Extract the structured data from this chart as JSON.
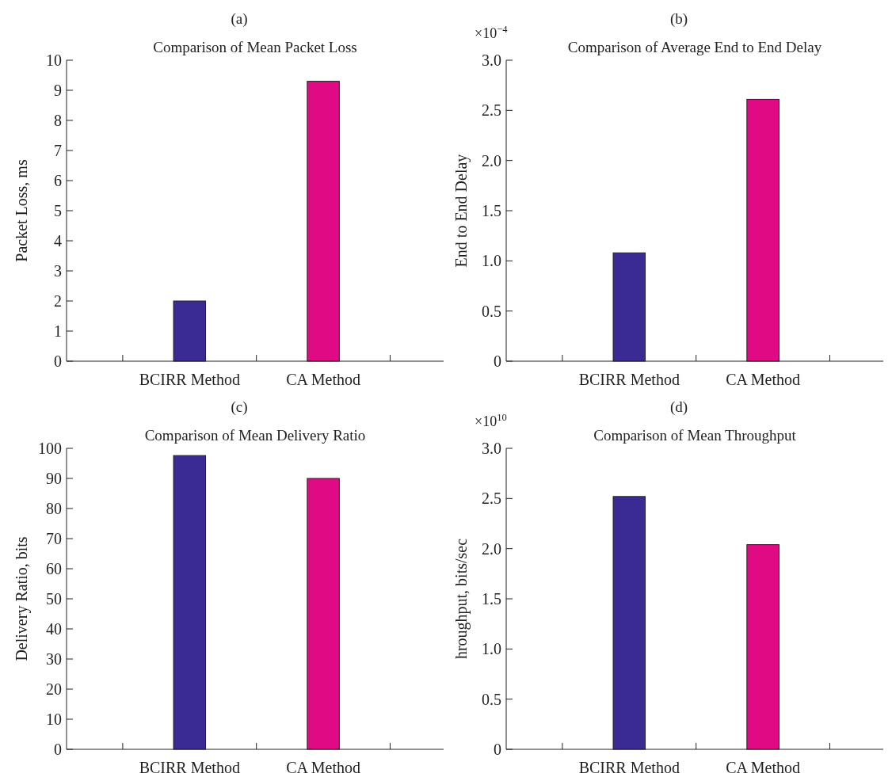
{
  "chart_data": [
    {
      "type": "bar",
      "title": "(a)",
      "subtitle": "Comparison of Mean Packet Loss",
      "ylabel": "Packet Loss, ms",
      "categories": [
        "BCIRR Method",
        "CA Method"
      ],
      "values": [
        2.0,
        9.3
      ],
      "colors": [
        "#3a2a93",
        "#e00a85"
      ],
      "ylim": [
        0,
        10
      ],
      "yticks": [
        0,
        1,
        2,
        3,
        4,
        5,
        6,
        7,
        8,
        9,
        10
      ]
    },
    {
      "type": "bar",
      "title": "(b)",
      "subtitle": "Comparison of Average End to End Delay",
      "ylabel": "End to End Delay",
      "annotations": [
        "×10$^{−4}$"
      ],
      "categories": [
        "BCIRR Method",
        "CA Method"
      ],
      "values": [
        1.08,
        2.61
      ],
      "colors": [
        "#3a2a93",
        "#e00a85"
      ],
      "ylim": [
        0,
        3
      ],
      "yticks": [
        0,
        {
          "value": 0.5,
          "label": "0.5"
        },
        {
          "value": 1,
          "label": "1.0"
        },
        {
          "value": 1.5,
          "label": "1.5"
        },
        {
          "value": 2,
          "label": "2.0"
        },
        {
          "value": 2.5,
          "label": "2.5"
        },
        {
          "value": 3,
          "label": "3.0"
        }
      ]
    },
    {
      "type": "bar",
      "title": "(c)",
      "subtitle": "Comparison of Mean Delivery Ratio",
      "ylabel": "Delivery Ratio, bits",
      "categories": [
        "BCIRR Method",
        "CA Method"
      ],
      "values": [
        97.6,
        90.0
      ],
      "colors": [
        "#3a2a93",
        "#e00a85"
      ],
      "ylim": [
        0,
        100
      ],
      "yticks": [
        0,
        10,
        20,
        30,
        40,
        50,
        60,
        70,
        80,
        90,
        100
      ]
    },
    {
      "type": "bar",
      "title": "(d)",
      "subtitle": "Comparison of Mean Throughput",
      "ylabel": "hroughput, bits/sec",
      "annotations": [
        "×10$^{10}$"
      ],
      "categories": [
        "BCIRR Method",
        "CA Method"
      ],
      "values": [
        2.52,
        2.04
      ],
      "colors": [
        "#3a2a93",
        "#e00a85"
      ],
      "ylim": [
        0,
        3
      ],
      "yticks": [
        0,
        {
          "value": 0.5,
          "label": "0.5"
        },
        {
          "value": 1,
          "label": "1.0"
        },
        {
          "value": 1.5,
          "label": "1.5"
        },
        {
          "value": 2,
          "label": "2.0"
        },
        {
          "value": 2.5,
          "label": "2.5"
        },
        {
          "value": 3,
          "label": "3.0"
        }
      ]
    }
  ]
}
